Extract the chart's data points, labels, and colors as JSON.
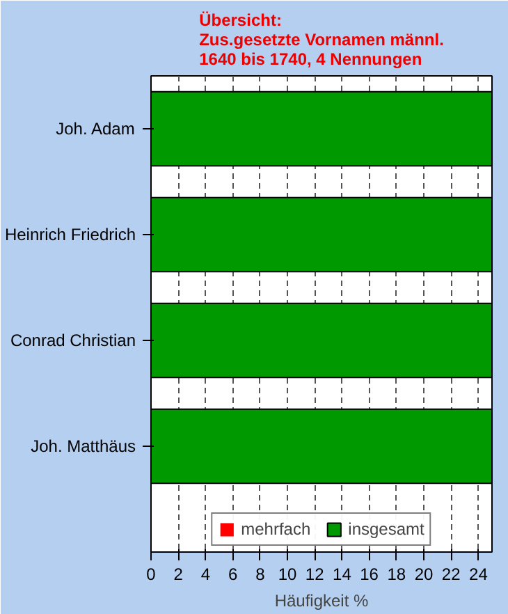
{
  "chart_data": {
    "type": "bar",
    "orientation": "horizontal",
    "title": "Übersicht:\nZus.gesetzte Vornamen männl.\n1640 bis 1740, 4 Nennungen",
    "xlabel": "Häufigkeit %",
    "categories": [
      "Joh. Adam",
      "Heinrich Friedrich",
      "Conrad Christian",
      "Joh. Matthäus"
    ],
    "series": [
      {
        "name": "mehrfach",
        "color": "#ff0000",
        "values": [
          0,
          0,
          0,
          0
        ]
      },
      {
        "name": "insgesamt",
        "color": "#009900",
        "values": [
          25,
          25,
          25,
          25
        ]
      }
    ],
    "xlim": [
      0,
      25
    ],
    "xticks": [
      0,
      2,
      4,
      6,
      8,
      10,
      12,
      14,
      16,
      18,
      20,
      22,
      24
    ],
    "grid": "x",
    "legend": "bottom"
  }
}
